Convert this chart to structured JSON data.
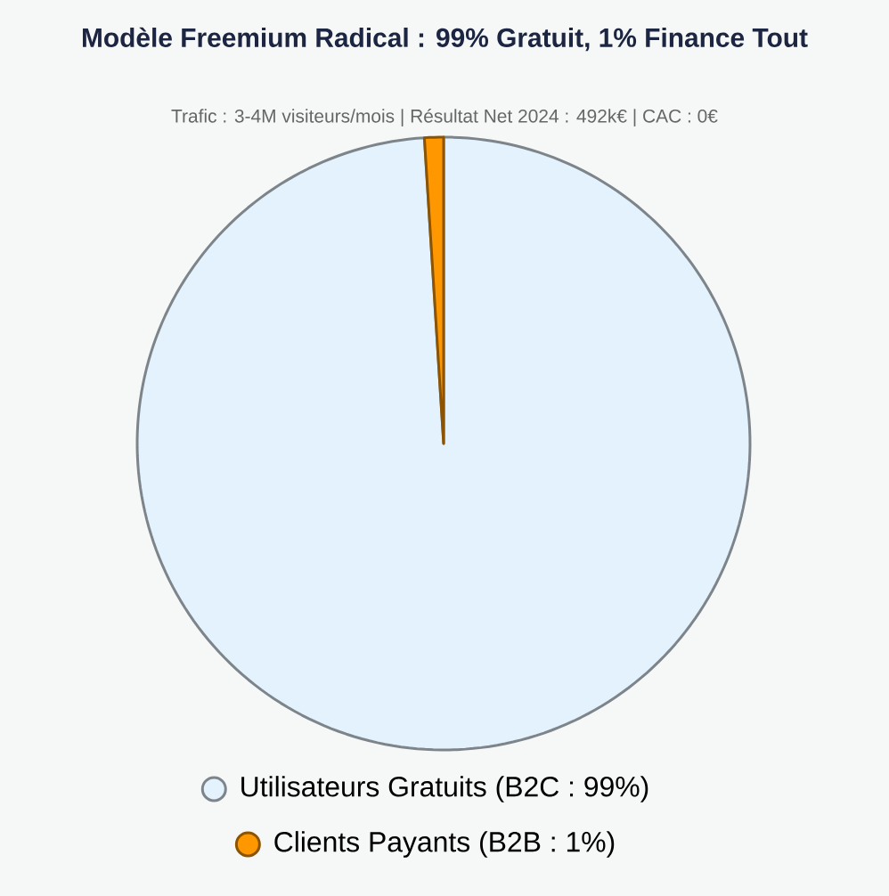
{
  "chart_data": {
    "type": "pie",
    "title": "Modèle Freemium Radical : 99% Gratuit, 1% Finance Tout",
    "subtitle": "Trafic : 3-4M visiteurs/mois | Résultat Net 2024 : 492k€ | CAC : 0€",
    "categories": [
      "Utilisateurs Gratuits (B2C : 99%)",
      "Clients Payants (B2B : 1%)"
    ],
    "values": [
      99,
      1
    ],
    "colors": [
      "#e3f2fd",
      "#ff9800"
    ],
    "legend": "bottom"
  }
}
